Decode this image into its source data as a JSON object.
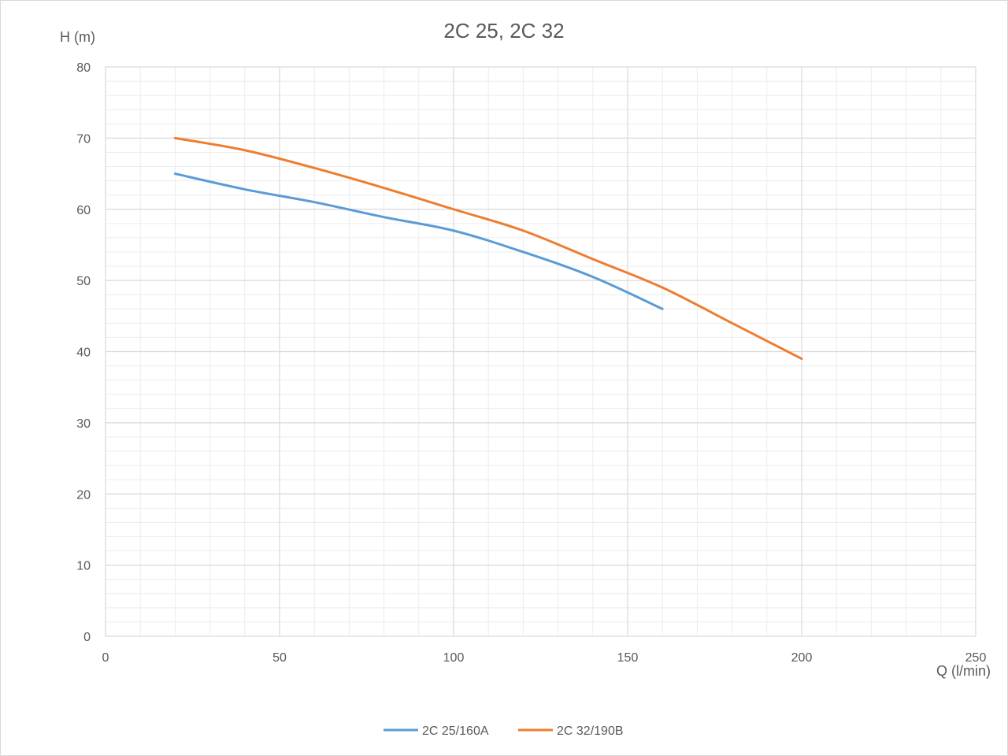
{
  "chart_data": {
    "type": "line",
    "title": "2C 25, 2C 32",
    "xlabel": "Q (l/min)",
    "ylabel": "H (m)",
    "xlim": [
      0,
      250
    ],
    "ylim": [
      0,
      80
    ],
    "x_ticks": [
      0,
      50,
      100,
      150,
      200,
      250
    ],
    "y_ticks": [
      0,
      10,
      20,
      30,
      40,
      50,
      60,
      70,
      80
    ],
    "grid": "major and minor",
    "legend": "bottom",
    "series": [
      {
        "name": "2C 25/160A",
        "color": "#5b9bd5",
        "x": [
          20,
          40,
          60,
          80,
          100,
          120,
          140,
          160
        ],
        "y": [
          65,
          62.8,
          61,
          58.9,
          57,
          54,
          50.5,
          46
        ]
      },
      {
        "name": "2C 32/190B",
        "color": "#ed7d31",
        "x": [
          20,
          40,
          60,
          80,
          100,
          120,
          140,
          160,
          180,
          200
        ],
        "y": [
          70,
          68.3,
          65.8,
          63,
          60,
          57,
          53,
          49,
          44,
          39
        ]
      }
    ]
  },
  "colors": {
    "grid_major": "#d9d9d9",
    "grid_minor": "#ececec",
    "text": "#595959"
  }
}
